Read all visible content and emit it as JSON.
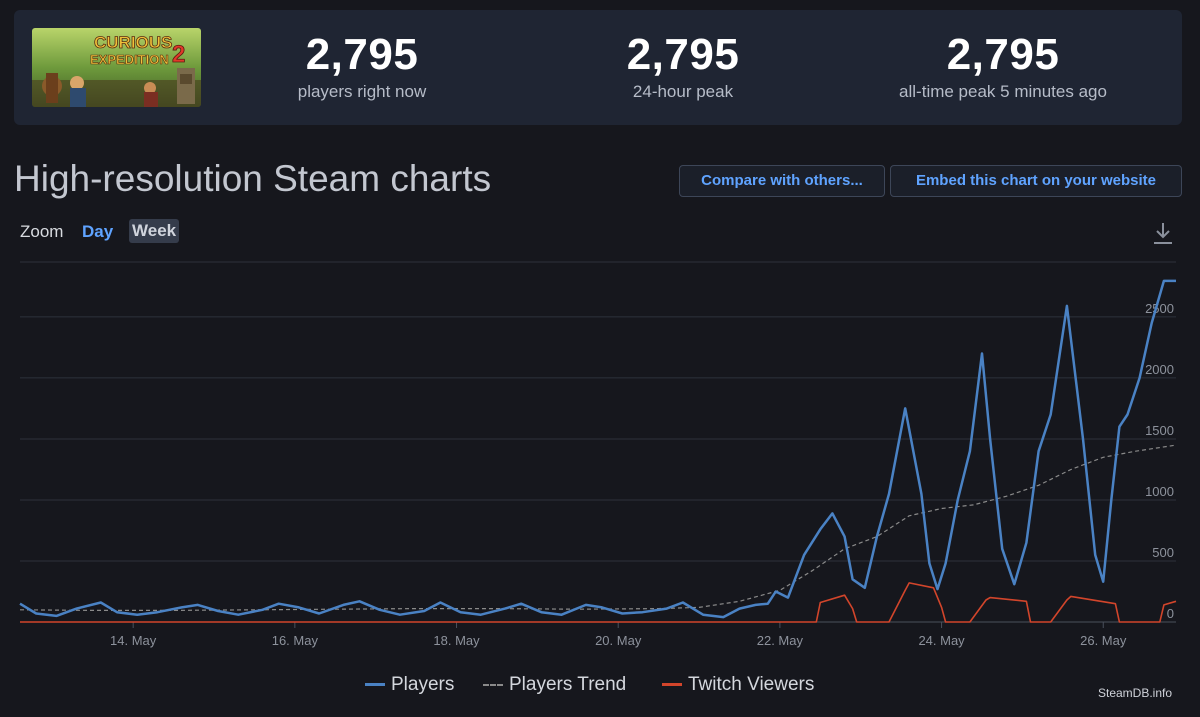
{
  "stats": [
    {
      "value": "2,795",
      "label": "players right now"
    },
    {
      "value": "2,795",
      "label": "24-hour peak"
    },
    {
      "value": "2,795",
      "label": "all-time peak 5 minutes ago"
    }
  ],
  "game_art": {
    "icon": "game-logo-image",
    "logo_line1": "CURIOUS",
    "logo_line2": "EXPEDITION",
    "logo_number": "2"
  },
  "page_title": "High-resolution Steam charts",
  "buttons": {
    "compare": "Compare with others...",
    "embed": "Embed this chart on your website"
  },
  "zoom": {
    "label": "Zoom",
    "day": "Day",
    "week": "Week"
  },
  "icons": {
    "download": "download-icon"
  },
  "credit": "SteamDB.info",
  "colors": {
    "players": "#4a82c4",
    "trend": "#8a8a8a",
    "twitch": "#d2452b",
    "accent": "#5fa3ff"
  },
  "chart_data": {
    "type": "line",
    "x_unit": "day of May",
    "x_range": [
      12.6,
      26.9
    ],
    "ylim": [
      0,
      2950
    ],
    "yticks": [
      0,
      500,
      1000,
      1500,
      2000,
      2500
    ],
    "xticks": [
      "14. May",
      "16. May",
      "18. May",
      "20. May",
      "22. May",
      "24. May",
      "26. May"
    ],
    "xtick_values": [
      14,
      16,
      18,
      20,
      22,
      24,
      26
    ],
    "legend_position": "bottom-center",
    "grid": true,
    "series": [
      {
        "name": "Players",
        "x": [
          12.6,
          12.8,
          13.05,
          13.3,
          13.6,
          13.8,
          14.05,
          14.3,
          14.6,
          14.8,
          15.05,
          15.3,
          15.6,
          15.8,
          16.05,
          16.3,
          16.6,
          16.8,
          17.05,
          17.3,
          17.6,
          17.8,
          18.05,
          18.3,
          18.6,
          18.8,
          19.05,
          19.3,
          19.6,
          19.8,
          20.05,
          20.3,
          20.6,
          20.8,
          21.05,
          21.3,
          21.5,
          21.7,
          21.85,
          21.95,
          22.1,
          22.3,
          22.5,
          22.65,
          22.8,
          22.9,
          23.05,
          23.2,
          23.35,
          23.55,
          23.75,
          23.85,
          23.95,
          24.05,
          24.2,
          24.35,
          24.5,
          24.6,
          24.75,
          24.9,
          25.05,
          25.2,
          25.35,
          25.55,
          25.75,
          25.9,
          26.0,
          26.1,
          26.2,
          26.3,
          26.45,
          26.6,
          26.75,
          26.9
        ],
        "y": [
          150,
          70,
          50,
          110,
          160,
          80,
          60,
          80,
          120,
          140,
          90,
          60,
          100,
          150,
          120,
          70,
          140,
          170,
          100,
          60,
          90,
          160,
          80,
          60,
          110,
          150,
          80,
          60,
          140,
          120,
          70,
          80,
          110,
          160,
          60,
          40,
          110,
          140,
          150,
          250,
          200,
          550,
          760,
          890,
          700,
          350,
          280,
          700,
          1050,
          1750,
          1050,
          480,
          270,
          480,
          1000,
          1400,
          2200,
          1500,
          600,
          310,
          650,
          1400,
          1700,
          2590,
          1500,
          550,
          330,
          1000,
          1600,
          1700,
          2000,
          2450,
          2795,
          2795
        ]
      },
      {
        "name": "Players Trend",
        "x": [
          12.6,
          13.5,
          14.5,
          15.5,
          16.5,
          17.5,
          18.5,
          19.5,
          20.5,
          21.0,
          21.5,
          22.0,
          22.4,
          22.8,
          23.2,
          23.6,
          24.0,
          24.4,
          24.8,
          25.2,
          25.6,
          26.0,
          26.4,
          26.9
        ],
        "y": [
          100,
          95,
          95,
          100,
          105,
          110,
          110,
          105,
          110,
          120,
          170,
          260,
          420,
          600,
          700,
          870,
          930,
          960,
          1030,
          1120,
          1250,
          1350,
          1400,
          1450
        ]
      },
      {
        "name": "Twitch Viewers",
        "x": [
          12.6,
          15.0,
          20.0,
          21.9,
          22.3,
          22.45,
          22.5,
          22.8,
          22.9,
          22.95,
          23.35,
          23.55,
          23.6,
          23.9,
          24.0,
          24.05,
          24.35,
          24.55,
          24.6,
          25.05,
          25.1,
          25.35,
          25.55,
          25.6,
          26.15,
          26.2,
          26.25,
          26.5,
          26.7,
          26.75,
          26.9
        ],
        "y": [
          0,
          0,
          0,
          0,
          0,
          0,
          160,
          220,
          110,
          0,
          0,
          260,
          320,
          280,
          120,
          0,
          0,
          180,
          200,
          170,
          0,
          0,
          180,
          210,
          150,
          0,
          0,
          0,
          0,
          140,
          170
        ]
      }
    ]
  }
}
